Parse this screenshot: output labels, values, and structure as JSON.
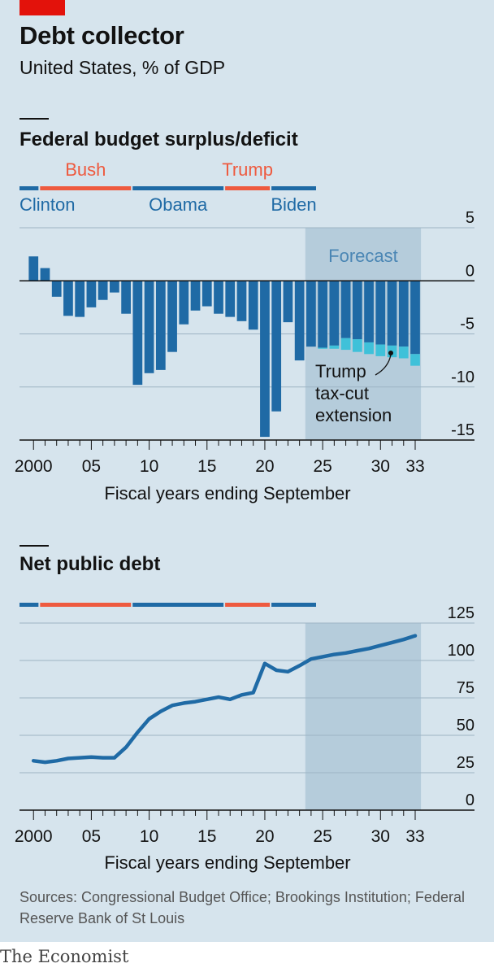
{
  "header": {
    "title": "Debt collector",
    "subtitle": "United States, % of GDP"
  },
  "chart_data": [
    {
      "type": "bar",
      "title": "Federal budget surplus/deficit",
      "xlabel": "Fiscal years ending September",
      "ylabel": "",
      "ylim": [
        -15,
        5
      ],
      "yticks": [
        5,
        0,
        -5,
        -10,
        -15
      ],
      "x_tick_labels": [
        {
          "year": 2000,
          "label": "2000"
        },
        {
          "year": 2005,
          "label": "05"
        },
        {
          "year": 2010,
          "label": "10"
        },
        {
          "year": 2015,
          "label": "15"
        },
        {
          "year": 2020,
          "label": "20"
        },
        {
          "year": 2025,
          "label": "25"
        },
        {
          "year": 2030,
          "label": "30"
        },
        {
          "year": 2033,
          "label": "33"
        }
      ],
      "shaded_region": {
        "label": "Forecast",
        "from": 2024,
        "to": 2033
      },
      "annotation": "Trump tax-cut extension",
      "presidents": [
        {
          "name": "Clinton",
          "from": 1998,
          "to": 2000,
          "color": "#1f6aa5"
        },
        {
          "name": "Bush",
          "from": 2001,
          "to": 2008,
          "color": "#ee5a3f"
        },
        {
          "name": "Obama",
          "from": 2009,
          "to": 2016,
          "color": "#1f6aa5"
        },
        {
          "name": "Trump",
          "from": 2017,
          "to": 2020,
          "color": "#ee5a3f"
        },
        {
          "name": "Biden",
          "from": 2021,
          "to": 2024,
          "color": "#1f6aa5"
        }
      ],
      "series": [
        {
          "name": "",
          "color": "#1f6aa5",
          "x": [
            1999,
            2000,
            2001,
            2002,
            2003,
            2004,
            2005,
            2006,
            2007,
            2008,
            2009,
            2010,
            2011,
            2012,
            2013,
            2014,
            2015,
            2016,
            2017,
            2018,
            2019,
            2020,
            2021,
            2022,
            2023,
            2024,
            2025,
            2026,
            2027,
            2028,
            2029,
            2030,
            2031,
            2032,
            2033
          ],
          "values": [
            0,
            2.3,
            1.2,
            -1.5,
            -3.3,
            -3.4,
            -2.5,
            -1.8,
            -1.1,
            -3.1,
            -9.8,
            -8.7,
            -8.4,
            -6.7,
            -4.1,
            -2.8,
            -2.4,
            -3.1,
            -3.4,
            -3.8,
            -4.6,
            -14.7,
            -12.3,
            -3.9,
            -7.5,
            -6.2,
            -6.3,
            -6.1,
            -5.4,
            -5.5,
            -5.8,
            -6.0,
            -6.1,
            -6.2,
            -6.9
          ]
        },
        {
          "name": "Trump tax-cut extension",
          "color": "#3fc1d9",
          "x": [
            2025,
            2026,
            2027,
            2028,
            2029,
            2030,
            2031,
            2032,
            2033
          ],
          "values": [
            -0.1,
            -0.3,
            -1.1,
            -1.2,
            -1.1,
            -1.1,
            -1.1,
            -1.1,
            -1.1
          ]
        }
      ]
    },
    {
      "type": "line",
      "title": "Net public debt",
      "xlabel": "Fiscal years ending September",
      "ylabel": "",
      "ylim": [
        0,
        125
      ],
      "yticks": [
        125,
        100,
        75,
        50,
        25,
        0
      ],
      "x_tick_labels": [
        {
          "year": 2000,
          "label": "2000"
        },
        {
          "year": 2005,
          "label": "05"
        },
        {
          "year": 2010,
          "label": "10"
        },
        {
          "year": 2015,
          "label": "15"
        },
        {
          "year": 2020,
          "label": "20"
        },
        {
          "year": 2025,
          "label": "25"
        },
        {
          "year": 2030,
          "label": "30"
        },
        {
          "year": 2033,
          "label": "33"
        }
      ],
      "shaded_region": {
        "label": "",
        "from": 2024,
        "to": 2033
      },
      "series": [
        {
          "name": "",
          "color": "#1f6aa5",
          "x": [
            2000,
            2001,
            2002,
            2003,
            2004,
            2005,
            2006,
            2007,
            2008,
            2009,
            2010,
            2011,
            2012,
            2013,
            2014,
            2015,
            2016,
            2017,
            2018,
            2019,
            2020,
            2021,
            2022,
            2023,
            2024,
            2025,
            2026,
            2027,
            2028,
            2029,
            2030,
            2031,
            2032,
            2033
          ],
          "values": [
            33,
            32,
            33,
            34.5,
            35,
            35.5,
            35,
            35,
            42,
            52,
            61,
            66,
            70,
            71.5,
            72.5,
            74,
            75.5,
            74,
            77,
            78.5,
            98,
            93.5,
            92.5,
            96.5,
            101,
            102.5,
            104,
            105,
            106.5,
            108,
            110,
            112,
            114,
            116.5
          ]
        }
      ]
    }
  ],
  "sources": "Sources: Congressional Budget Office; Brookings Institution; Federal Reserve Bank of St Louis",
  "brand": "The Economist"
}
